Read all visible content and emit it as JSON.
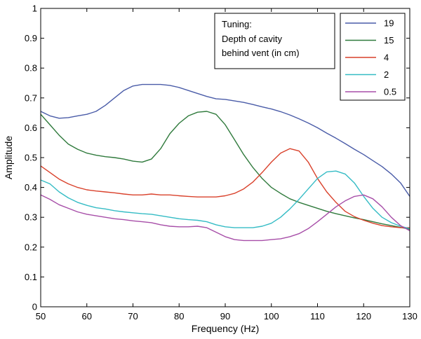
{
  "chart_data": {
    "type": "line",
    "title": "",
    "xlabel": "Frequency (Hz)",
    "ylabel": "Amplitude",
    "xlim": [
      50,
      130
    ],
    "ylim": [
      0,
      1
    ],
    "xticks": [
      50,
      60,
      70,
      80,
      90,
      100,
      110,
      120,
      130
    ],
    "yticks": [
      0,
      0.1,
      0.2,
      0.3,
      0.4,
      0.5,
      0.6,
      0.7,
      0.8,
      0.9,
      1
    ],
    "ytick_labels": [
      "0",
      "0.1",
      "0.2",
      "0.3",
      "0.4",
      "0.5",
      "0.6",
      "0.7",
      "0.8",
      "0.9",
      "1"
    ],
    "grid": false,
    "annotation": {
      "lines": [
        "Tuning:",
        "Depth of cavity",
        "behind vent (in cm)"
      ]
    },
    "legend_position": "top-right",
    "series": [
      {
        "name": "19",
        "color": "#4a5ca8",
        "x": [
          50,
          52,
          54,
          56,
          58,
          60,
          62,
          64,
          66,
          68,
          70,
          72,
          74,
          76,
          78,
          80,
          82,
          84,
          86,
          88,
          90,
          92,
          94,
          96,
          98,
          100,
          102,
          104,
          106,
          108,
          110,
          112,
          114,
          116,
          118,
          120,
          122,
          124,
          126,
          128,
          130
        ],
        "values": [
          0.655,
          0.64,
          0.632,
          0.634,
          0.64,
          0.645,
          0.655,
          0.675,
          0.7,
          0.725,
          0.74,
          0.745,
          0.745,
          0.745,
          0.742,
          0.735,
          0.725,
          0.715,
          0.705,
          0.697,
          0.695,
          0.69,
          0.685,
          0.678,
          0.67,
          0.663,
          0.654,
          0.643,
          0.63,
          0.616,
          0.6,
          0.582,
          0.565,
          0.547,
          0.528,
          0.51,
          0.49,
          0.47,
          0.445,
          0.415,
          0.37
        ]
      },
      {
        "name": "15",
        "color": "#2f7a3c",
        "x": [
          50,
          52,
          54,
          56,
          58,
          60,
          62,
          64,
          66,
          68,
          70,
          72,
          74,
          76,
          78,
          80,
          82,
          84,
          86,
          88,
          90,
          92,
          94,
          96,
          98,
          100,
          102,
          104,
          106,
          108,
          110,
          112,
          114,
          116,
          118,
          120,
          122,
          124,
          126,
          128,
          130
        ],
        "values": [
          0.645,
          0.61,
          0.575,
          0.545,
          0.528,
          0.515,
          0.508,
          0.503,
          0.5,
          0.495,
          0.488,
          0.485,
          0.495,
          0.53,
          0.58,
          0.615,
          0.64,
          0.652,
          0.655,
          0.645,
          0.61,
          0.56,
          0.51,
          0.467,
          0.43,
          0.4,
          0.38,
          0.362,
          0.35,
          0.34,
          0.33,
          0.32,
          0.312,
          0.305,
          0.298,
          0.292,
          0.285,
          0.278,
          0.272,
          0.266,
          0.26
        ]
      },
      {
        "name": "4",
        "color": "#d9412b",
        "x": [
          50,
          52,
          54,
          56,
          58,
          60,
          62,
          64,
          66,
          68,
          70,
          72,
          74,
          76,
          78,
          80,
          82,
          84,
          86,
          88,
          90,
          92,
          94,
          96,
          98,
          100,
          102,
          104,
          106,
          108,
          110,
          112,
          114,
          116,
          118,
          120,
          122,
          124,
          126,
          128,
          130
        ],
        "values": [
          0.472,
          0.45,
          0.428,
          0.412,
          0.4,
          0.392,
          0.388,
          0.385,
          0.382,
          0.378,
          0.375,
          0.375,
          0.378,
          0.375,
          0.375,
          0.372,
          0.37,
          0.368,
          0.368,
          0.368,
          0.372,
          0.38,
          0.395,
          0.418,
          0.45,
          0.485,
          0.515,
          0.53,
          0.522,
          0.485,
          0.43,
          0.385,
          0.35,
          0.32,
          0.302,
          0.29,
          0.28,
          0.272,
          0.268,
          0.265,
          0.265
        ]
      },
      {
        "name": "2",
        "color": "#35bcc5",
        "x": [
          50,
          52,
          54,
          56,
          58,
          60,
          62,
          64,
          66,
          68,
          70,
          72,
          74,
          76,
          78,
          80,
          82,
          84,
          86,
          88,
          90,
          92,
          94,
          96,
          98,
          100,
          102,
          104,
          106,
          108,
          110,
          112,
          114,
          116,
          118,
          120,
          122,
          124,
          126,
          128,
          130
        ],
        "values": [
          0.425,
          0.412,
          0.385,
          0.365,
          0.35,
          0.34,
          0.332,
          0.328,
          0.322,
          0.318,
          0.315,
          0.312,
          0.31,
          0.305,
          0.3,
          0.295,
          0.292,
          0.29,
          0.285,
          0.275,
          0.268,
          0.265,
          0.265,
          0.265,
          0.27,
          0.28,
          0.3,
          0.328,
          0.36,
          0.395,
          0.43,
          0.452,
          0.455,
          0.445,
          0.415,
          0.37,
          0.33,
          0.3,
          0.282,
          0.27,
          0.262
        ]
      },
      {
        "name": "0.5",
        "color": "#a74ea8",
        "x": [
          50,
          52,
          54,
          56,
          58,
          60,
          62,
          64,
          66,
          68,
          70,
          72,
          74,
          76,
          78,
          80,
          82,
          84,
          86,
          88,
          90,
          92,
          94,
          96,
          98,
          100,
          102,
          104,
          106,
          108,
          110,
          112,
          114,
          116,
          118,
          120,
          122,
          124,
          126,
          128,
          130
        ],
        "values": [
          0.375,
          0.36,
          0.342,
          0.33,
          0.318,
          0.31,
          0.305,
          0.3,
          0.295,
          0.292,
          0.288,
          0.285,
          0.282,
          0.275,
          0.27,
          0.268,
          0.268,
          0.27,
          0.265,
          0.25,
          0.235,
          0.225,
          0.222,
          0.222,
          0.222,
          0.225,
          0.228,
          0.235,
          0.245,
          0.262,
          0.285,
          0.31,
          0.335,
          0.355,
          0.37,
          0.375,
          0.362,
          0.335,
          0.3,
          0.272,
          0.255
        ]
      }
    ]
  }
}
